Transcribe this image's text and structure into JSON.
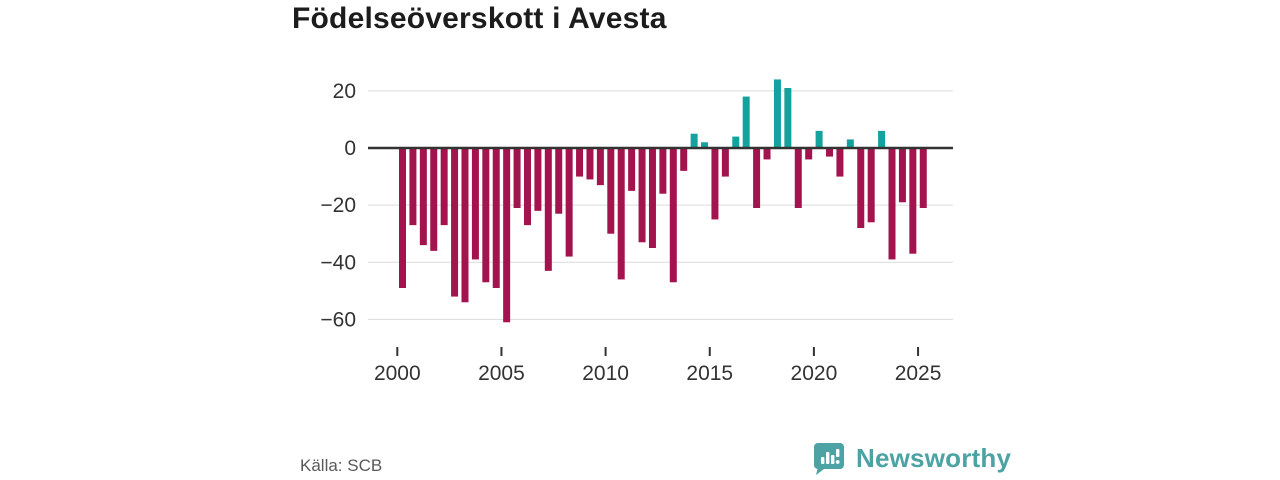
{
  "title": "Födelseöverskott i Avesta",
  "source": "Källa: SCB",
  "brand": {
    "name": "Newsworthy",
    "icon": "newsworthy-speech-bubble-chart-icon",
    "color": "#4da3a3"
  },
  "colors": {
    "negative_bar": "#a3134d",
    "positive_bar": "#14a29e",
    "axis": "#333333",
    "gridline": "#dcdcdc",
    "title_text": "#1c1c1c",
    "source_text": "#595959"
  },
  "chart_data": {
    "type": "bar",
    "title": "Födelseöverskott i Avesta",
    "xlabel": "",
    "ylabel": "",
    "x_axis": {
      "tick_labels": [
        "2000",
        "2005",
        "2010",
        "2015",
        "2020",
        "2025"
      ],
      "tick_years": [
        2000,
        2005,
        2010,
        2015,
        2020,
        2025
      ]
    },
    "y_axis": {
      "tick_labels": [
        "20",
        "0",
        "−20",
        "−40",
        "−60"
      ],
      "tick_values": [
        20,
        0,
        -20,
        -40,
        -60
      ],
      "ylim": [
        -65,
        27
      ]
    },
    "grid": true,
    "legend": "none",
    "periods": [
      "2000H1",
      "2000H2",
      "2001H1",
      "2001H2",
      "2002H1",
      "2002H2",
      "2003H1",
      "2003H2",
      "2004H1",
      "2004H2",
      "2005H1",
      "2005H2",
      "2006H1",
      "2006H2",
      "2007H1",
      "2007H2",
      "2008H1",
      "2008H2",
      "2009H1",
      "2009H2",
      "2010H1",
      "2010H2",
      "2011H1",
      "2011H2",
      "2012H1",
      "2012H2",
      "2013H1",
      "2013H2",
      "2014H1",
      "2014H2",
      "2015H1",
      "2015H2",
      "2016H1",
      "2016H2",
      "2017H1",
      "2017H2",
      "2018H1",
      "2018H2",
      "2019H1",
      "2019H2",
      "2020H1",
      "2020H2",
      "2021H1",
      "2021H2",
      "2022H1",
      "2022H2",
      "2023H1",
      "2023H2",
      "2024H1",
      "2024H2",
      "2025H1"
    ],
    "values": [
      -49,
      -27,
      -34,
      -36,
      -27,
      -52,
      -54,
      -39,
      -47,
      -49,
      -61,
      -21,
      -27,
      -22,
      -43,
      -23,
      -38,
      -10,
      -11,
      -13,
      -30,
      -46,
      -15,
      -33,
      -35,
      -16,
      -47,
      -8,
      5,
      2,
      -25,
      -10,
      4,
      18,
      -21,
      -4,
      24,
      21,
      -21,
      -4,
      6,
      -3,
      -10,
      3,
      -28,
      -26,
      6,
      -39,
      -19,
      -37,
      -21
    ]
  }
}
